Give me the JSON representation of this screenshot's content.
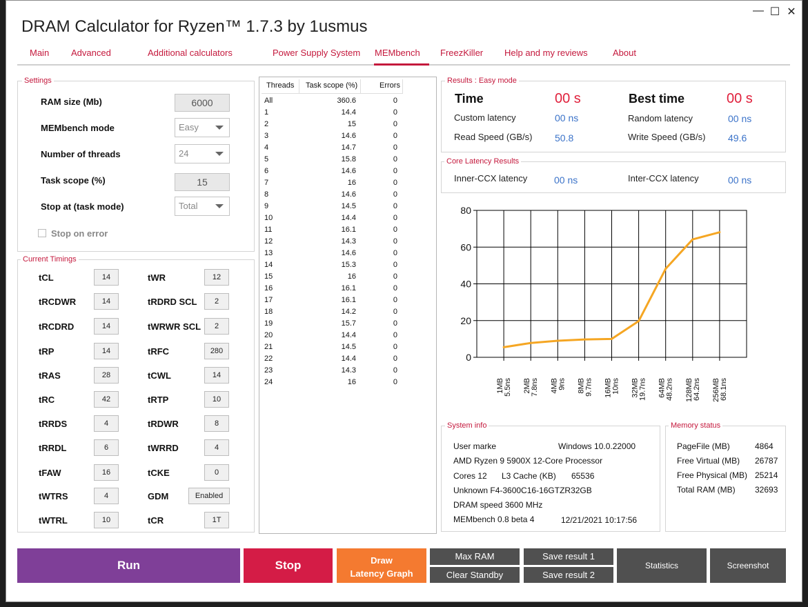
{
  "window": {
    "title": "DRAM Calculator for Ryzen™ 1.7.3 by 1usmus",
    "min": "—",
    "max": "☐",
    "close": "✕"
  },
  "tabs": [
    "Main",
    "Advanced",
    "Additional calculators",
    "Power Supply System",
    "MEMbench",
    "FreezKiller",
    "Help and my reviews",
    "About"
  ],
  "settings": {
    "group": "Settings",
    "ram_size_label": "RAM size (Mb)",
    "ram_size": "6000",
    "mode_label": "MEMbench mode",
    "mode": "Easy",
    "threads_label": "Number of threads",
    "threads": "24",
    "scope_label": "Task scope (%)",
    "scope": "15",
    "stop_label": "Stop at (task mode)",
    "stop": "Total",
    "stop_error_label": "Stop on error",
    "stop_error_checked": false
  },
  "timings": {
    "group": "Current Timings",
    "left": [
      {
        "name": "tCL",
        "value": "14"
      },
      {
        "name": "tRCDWR",
        "value": "14"
      },
      {
        "name": "tRCDRD",
        "value": "14"
      },
      {
        "name": "tRP",
        "value": "14"
      },
      {
        "name": "tRAS",
        "value": "28"
      },
      {
        "name": "tRC",
        "value": "42"
      },
      {
        "name": "tRRDS",
        "value": "4"
      },
      {
        "name": "tRRDL",
        "value": "6"
      },
      {
        "name": "tFAW",
        "value": "16"
      },
      {
        "name": "tWTRS",
        "value": "4"
      },
      {
        "name": "tWTRL",
        "value": "10"
      }
    ],
    "right": [
      {
        "name": "tWR",
        "value": "12"
      },
      {
        "name": "tRDRD SCL",
        "value": "2"
      },
      {
        "name": "tWRWR SCL",
        "value": "2"
      },
      {
        "name": "tRFC",
        "value": "280"
      },
      {
        "name": "tCWL",
        "value": "14"
      },
      {
        "name": "tRTP",
        "value": "10"
      },
      {
        "name": "tRDWR",
        "value": "8"
      },
      {
        "name": "tWRRD",
        "value": "4"
      },
      {
        "name": "tCKE",
        "value": "0"
      },
      {
        "name": "GDM",
        "value": "Enabled"
      },
      {
        "name": "tCR",
        "value": "1T"
      }
    ]
  },
  "threads_table": {
    "headers": [
      "Threads",
      "Task scope (%)",
      "Errors"
    ],
    "rows": [
      [
        "All",
        "360.6",
        "0"
      ],
      [
        "1",
        "14.4",
        "0"
      ],
      [
        "2",
        "15",
        "0"
      ],
      [
        "3",
        "14.6",
        "0"
      ],
      [
        "4",
        "14.7",
        "0"
      ],
      [
        "5",
        "15.8",
        "0"
      ],
      [
        "6",
        "14.6",
        "0"
      ],
      [
        "7",
        "16",
        "0"
      ],
      [
        "8",
        "14.6",
        "0"
      ],
      [
        "9",
        "14.5",
        "0"
      ],
      [
        "10",
        "14.4",
        "0"
      ],
      [
        "11",
        "16.1",
        "0"
      ],
      [
        "12",
        "14.3",
        "0"
      ],
      [
        "13",
        "14.6",
        "0"
      ],
      [
        "14",
        "15.3",
        "0"
      ],
      [
        "15",
        "16",
        "0"
      ],
      [
        "16",
        "16.1",
        "0"
      ],
      [
        "17",
        "16.1",
        "0"
      ],
      [
        "18",
        "14.2",
        "0"
      ],
      [
        "19",
        "15.7",
        "0"
      ],
      [
        "20",
        "14.4",
        "0"
      ],
      [
        "21",
        "14.5",
        "0"
      ],
      [
        "22",
        "14.4",
        "0"
      ],
      [
        "23",
        "14.3",
        "0"
      ],
      [
        "24",
        "16",
        "0"
      ]
    ]
  },
  "results": {
    "group": "Results : Easy mode",
    "time_label": "Time",
    "time": "00 s",
    "best_label": "Best time",
    "best": "00 s",
    "custom_label": "Custom latency",
    "custom": "00 ns",
    "random_label": "Random latency",
    "random": "00 ns",
    "read_label": "Read Speed (GB/s)",
    "read": "50.8",
    "write_label": "Write Speed (GB/s)",
    "write": "49.6"
  },
  "core": {
    "group": "Core Latency Results",
    "inner_label": "Inner-CCX latency",
    "inner": "00 ns",
    "inter_label": "Inter-CCX latency",
    "inter": "00 ns"
  },
  "chart_data": {
    "type": "line",
    "categories": [
      "1MB\n5.5ns",
      "2MB\n7.8ns",
      "4MB\n9ns",
      "8MB\n9.7ns",
      "16MB\n10ns",
      "32MB\n19.7ns",
      "64MB\n48.2ns",
      "128MB\n64.2ns",
      "256MB\n68.1ns"
    ],
    "x_labels": [
      [
        "1MB",
        "5.5ns"
      ],
      [
        "2MB",
        "7.8ns"
      ],
      [
        "4MB",
        "9ns"
      ],
      [
        "8MB",
        "9.7ns"
      ],
      [
        "16MB",
        "10ns"
      ],
      [
        "32MB",
        "19.7ns"
      ],
      [
        "64MB",
        "48.2ns"
      ],
      [
        "128MB",
        "64.2ns"
      ],
      [
        "256MB",
        "68.1ns"
      ]
    ],
    "values": [
      5.5,
      7.8,
      9,
      9.7,
      10,
      19.7,
      48.2,
      64.2,
      68.1
    ],
    "ylim": [
      0,
      80
    ],
    "yticks": [
      "0",
      "20",
      "40",
      "60",
      "80"
    ],
    "grid": true,
    "color": "#f5a623"
  },
  "sysinfo": {
    "group": "System info",
    "user_label": "User marke",
    "os": "Windows 10.0.22000",
    "cpu": "AMD Ryzen 9 5900X 12-Core Processor",
    "cores_label": "Cores 12",
    "l3_label": "L3 Cache (KB)",
    "l3": "65536",
    "ram": "Unknown F4-3600C16-16GTZR32GB",
    "dram": "DRAM speed 3600 MHz",
    "bench": "MEMbench 0.8 beta 4",
    "date": "12/21/2021 10:17:56"
  },
  "memory": {
    "group": "Memory status",
    "rows": [
      {
        "label": "PageFile (MB)",
        "value": "4864"
      },
      {
        "label": "Free Virtual (MB)",
        "value": "26787"
      },
      {
        "label": "Free Physical (MB)",
        "value": "25214"
      },
      {
        "label": "Total RAM (MB)",
        "value": "32693"
      }
    ]
  },
  "buttons": {
    "run": "Run",
    "stop": "Stop",
    "draw_line1": "Draw",
    "draw_line2": "Latency Graph",
    "maxram": "Max RAM",
    "clear": "Clear Standby",
    "save1": "Save result 1",
    "save2": "Save result 2",
    "stats": "Statistics",
    "shot": "Screenshot"
  },
  "colors": {
    "accent": "#c4183c",
    "run": "#7f3f98",
    "stop": "#d41c46",
    "draw": "#f47a30",
    "gray": "#505050"
  }
}
